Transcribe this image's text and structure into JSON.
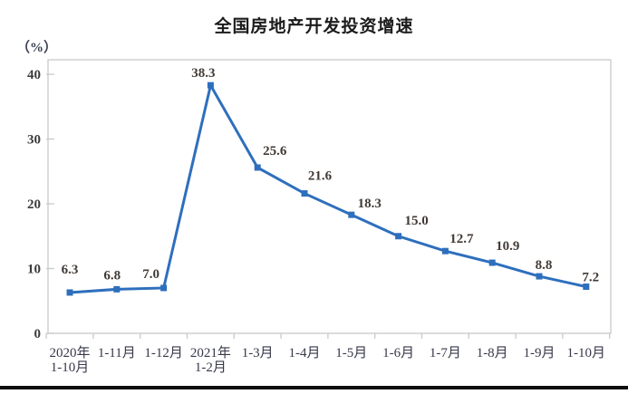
{
  "page": {
    "title": "全国房地产开发投资增速",
    "unit_label": "（%）"
  },
  "chart_data": {
    "type": "line",
    "title": "全国房地产开发投资增速",
    "ylabel": "（%）",
    "xlabel": "",
    "categories": [
      "2020年\n1-10月",
      "1-11月",
      "1-12月",
      "2021年\n1-2月",
      "1-3月",
      "1-4月",
      "1-5月",
      "1-6月",
      "1-7月",
      "1-8月",
      "1-9月",
      "1-10月"
    ],
    "values": [
      6.3,
      6.8,
      7.0,
      38.3,
      25.6,
      21.6,
      18.3,
      15.0,
      12.7,
      10.9,
      8.8,
      7.2
    ],
    "data_labels": [
      "6.3",
      "6.8",
      "7.0",
      "38.3",
      "25.6",
      "21.6",
      "18.3",
      "15.0",
      "12.7",
      "10.9",
      "8.8",
      "7.2"
    ],
    "y_ticks": [
      0,
      10,
      20,
      30,
      40
    ],
    "ylim": [
      0,
      42.3
    ],
    "grid": false,
    "legend_position": "none",
    "line_color": "#2e6fbd",
    "marker_shape": "square",
    "marker_color": "#2e6fbd",
    "axis_color": "#c9c9c9",
    "tick_label_color": "#3b3b3b",
    "data_label_color": "#423a35",
    "x_label_color": "#37384a"
  }
}
